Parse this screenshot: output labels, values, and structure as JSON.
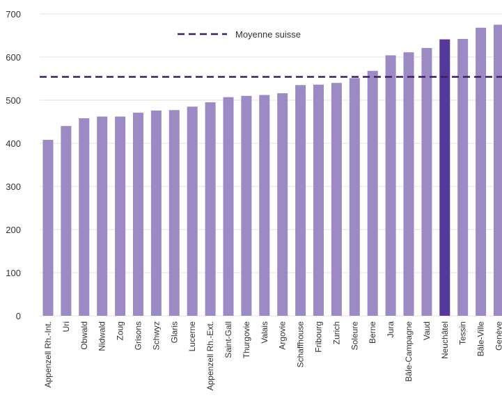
{
  "chart_data": {
    "type": "bar",
    "title": "",
    "xlabel": "",
    "ylabel": "",
    "ylim": [
      0,
      700
    ],
    "yticks": [
      0,
      100,
      200,
      300,
      400,
      500,
      600,
      700
    ],
    "grid": true,
    "legend_position": "top-center",
    "categories": [
      "Appenzell Rh.-Int.",
      "Uri",
      "Obwald",
      "Nidwald",
      "Zoug",
      "Grisons",
      "Schwyz",
      "Glaris",
      "Lucerne",
      "Appenzell Rh.-Ext.",
      "Saint-Gall",
      "Thurgovie",
      "Valais",
      "Argovie",
      "Schaffhouse",
      "Fribourg",
      "Zurich",
      "Soleure",
      "Berne",
      "Jura",
      "Bâle-Campagne",
      "Vaud",
      "Neuchâtel",
      "Tessin",
      "Bâle-Ville",
      "Genève"
    ],
    "values": [
      408,
      440,
      458,
      462,
      462,
      471,
      476,
      477,
      485,
      495,
      507,
      510,
      512,
      516,
      535,
      536,
      540,
      551,
      568,
      604,
      611,
      621,
      641,
      642,
      668,
      675
    ],
    "highlight_category": "Neuchâtel",
    "reference_line": {
      "label": "Moyenne suisse",
      "value": 554,
      "style": "dashed"
    },
    "colors": {
      "bar": "#9b8ac4",
      "highlight": "#54389a",
      "reference": "#3d1f5e",
      "grid": "#e3e3e3",
      "axis_text": "#333333"
    }
  }
}
